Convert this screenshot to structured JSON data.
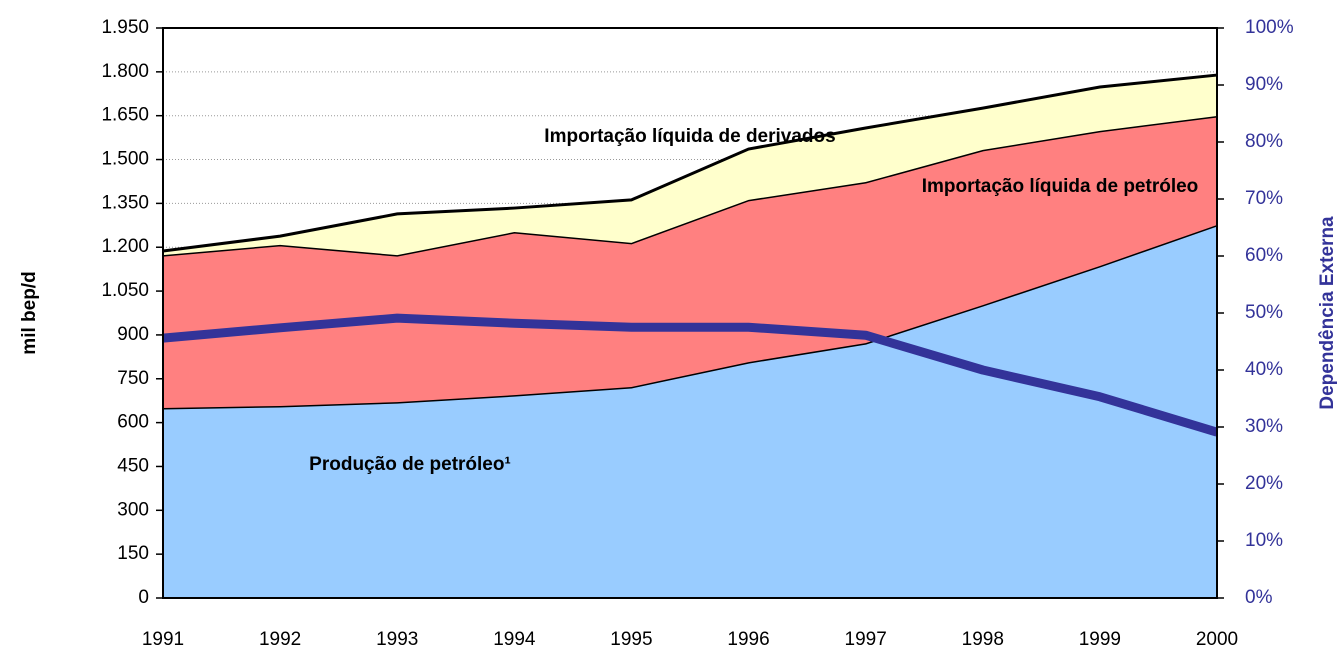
{
  "chart_data": {
    "type": "stacked_area",
    "ylabel": "mil bep/d",
    "y2label": "Dependência Externa",
    "categories": [
      "1991",
      "1992",
      "1993",
      "1994",
      "1995",
      "1996",
      "1997",
      "1998",
      "1999",
      "2000"
    ],
    "series": [
      {
        "name": "Produção de petróleo¹",
        "color": "#99ccff",
        "values": [
          650,
          657,
          670,
          694,
          722,
          807,
          872,
          1002,
          1136,
          1276
        ]
      },
      {
        "name": "Importação líquida de petróleo",
        "color": "#ff8080",
        "values": [
          523,
          551,
          503,
          558,
          493,
          555,
          551,
          531,
          462,
          373
        ]
      },
      {
        "name": "Importação líquida de derivados",
        "color": "#ffffcc",
        "values": [
          14,
          30,
          141,
          82,
          147,
          174,
          185,
          143,
          150,
          140
        ]
      },
      {
        "type": "line",
        "axis": "y2",
        "color": "#333399",
        "values": [
          45.6,
          47.4,
          49.1,
          48.2,
          47.5,
          47.5,
          46.1,
          40.0,
          35.3,
          29.1
        ]
      }
    ],
    "ylim": [
      0,
      1950
    ],
    "yticks": [
      0,
      150,
      300,
      450,
      600,
      750,
      900,
      {
        "value": 1050,
        "label": "1.050"
      },
      {
        "value": 1200,
        "label": "1.200"
      },
      {
        "value": 1350,
        "label": "1.350"
      },
      {
        "value": 1500,
        "label": "1.500"
      },
      {
        "value": 1650,
        "label": "1.650"
      },
      {
        "value": 1800,
        "label": "1.800"
      },
      {
        "value": 1950,
        "label": "1.950"
      }
    ],
    "y2lim": [
      0,
      100
    ],
    "y2ticks": [
      {
        "value": 0,
        "label": "0%"
      },
      {
        "value": 10,
        "label": "10%"
      },
      {
        "value": 20,
        "label": "20%"
      },
      {
        "value": 30,
        "label": "30%"
      },
      {
        "value": 40,
        "label": "40%"
      },
      {
        "value": 50,
        "label": "50%"
      },
      {
        "value": 60,
        "label": "60%"
      },
      {
        "value": 70,
        "label": "70%"
      },
      {
        "value": 80,
        "label": "80%"
      },
      {
        "value": 90,
        "label": "90%"
      },
      {
        "value": 100,
        "label": "100%"
      }
    ],
    "y2color": "#333399",
    "grid": true
  }
}
